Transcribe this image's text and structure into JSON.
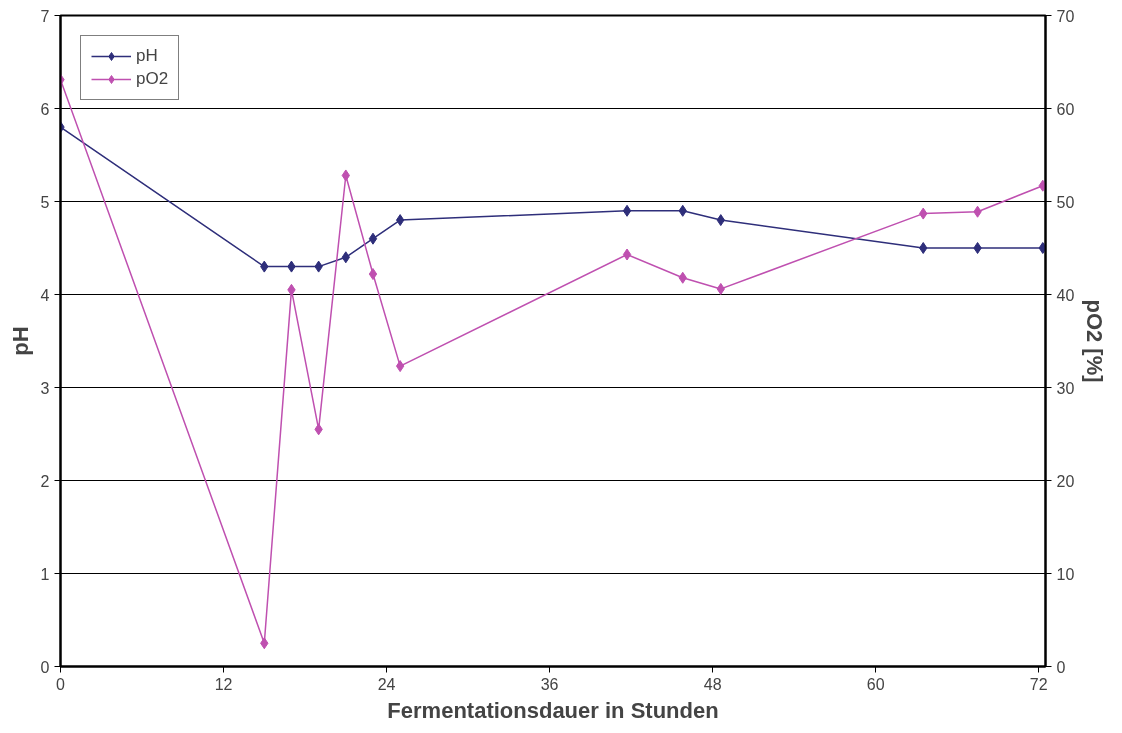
{
  "chart_data": {
    "type": "line",
    "xlabel": "Fermentationsdauer in Stunden",
    "ylabel": "pH",
    "y2label": "pO2 [%]",
    "x": [
      0,
      15,
      17,
      19,
      21,
      23,
      25,
      41.7,
      45.8,
      48.6,
      63.5,
      67.5,
      72.3
    ],
    "series": [
      {
        "name": "pH",
        "color": "#2e2e7a",
        "values": [
          5.8,
          4.3,
          4.3,
          4.3,
          4.4,
          4.6,
          4.8,
          4.9,
          4.9,
          4.8,
          4.5,
          4.5,
          4.5
        ]
      },
      {
        "name": "pO2",
        "color": "#bf50b0",
        "axis": "y2",
        "values": [
          63.1,
          2.5,
          40.5,
          25.5,
          52.8,
          42.2,
          32.3,
          44.3,
          41.8,
          40.6,
          48.7,
          48.9,
          51.7
        ]
      }
    ],
    "xlim": [
      0,
      72.5
    ],
    "xticks": [
      0,
      12,
      24,
      36,
      48,
      60,
      72
    ],
    "ylim": [
      0,
      7
    ],
    "yticks": [
      0,
      1,
      2,
      3,
      4,
      5,
      6,
      7
    ],
    "y2lim": [
      0,
      70
    ],
    "y2ticks": [
      0,
      10,
      20,
      30,
      40,
      50,
      60,
      70
    ],
    "grid": "y",
    "legend": "top left",
    "marker": "diamond",
    "line_style": "solid"
  }
}
